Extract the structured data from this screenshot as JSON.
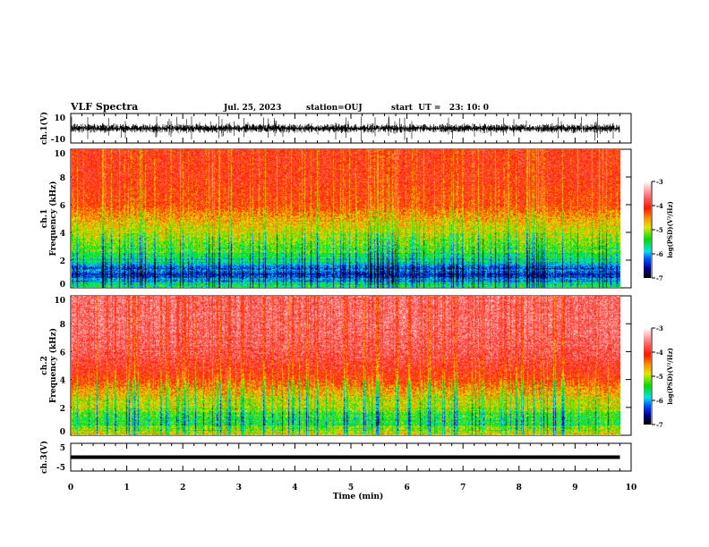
{
  "header": {
    "title": "VLF Spectra",
    "date": "Jul. 25, 2023",
    "station": "station=OUJ",
    "start": "start  UT =   23: 10: 0"
  },
  "chart_data": [
    {
      "type": "line",
      "name": "ch1 waveform",
      "ylabel": "ch.1(V)",
      "ylim": [
        -10,
        10
      ],
      "yticks": [
        "10",
        "-10"
      ],
      "xlim": [
        0,
        10
      ],
      "baseline_v": 0,
      "amplitude_v": 2,
      "spike_v": 5,
      "data_end_min": 9.8
    },
    {
      "type": "heatmap",
      "name": "ch1 spectrogram",
      "ylabel": "ch.1\nFrequency (kHz)",
      "ylabel_top": "ch.1",
      "ylabel_bottom": "Frequency (kHz)",
      "ylim": [
        0,
        10
      ],
      "yticks": [
        "0",
        "2",
        "4",
        "6",
        "8",
        "10"
      ],
      "profile_khz": [
        0,
        0.5,
        1,
        1.5,
        2,
        3,
        4,
        5,
        6,
        8,
        10
      ],
      "profile_log_psd": [
        -5.3,
        -6.0,
        -6.3,
        -6.1,
        -5.6,
        -5.2,
        -4.9,
        -4.6,
        -4.2,
        -4.0,
        -4.0
      ],
      "colorbar": {
        "label": "log(PSD)(V²/Hz)",
        "ticks": [
          "-3",
          "-4",
          "-5",
          "-6",
          "-7"
        ],
        "range": [
          -7,
          -3
        ]
      }
    },
    {
      "type": "heatmap",
      "name": "ch2 spectrogram",
      "ylabel": "ch.2\nFrequency (kHz)",
      "ylabel_top": "ch.2",
      "ylabel_bottom": "Frequency (kHz)",
      "ylim": [
        0,
        10
      ],
      "yticks": [
        "0",
        "2",
        "4",
        "6",
        "8",
        "10"
      ],
      "profile_khz": [
        0,
        0.5,
        1,
        1.5,
        2,
        3,
        4,
        5,
        6,
        8,
        10
      ],
      "profile_log_psd": [
        -4.7,
        -5.2,
        -5.5,
        -5.3,
        -5.0,
        -4.7,
        -4.2,
        -3.9,
        -3.7,
        -3.6,
        -3.6
      ],
      "colorbar": {
        "label": "log(PSD)(V²/Hz)",
        "ticks": [
          "-3",
          "-4",
          "-5",
          "-6",
          "-7"
        ],
        "range": [
          -7,
          -3
        ]
      }
    },
    {
      "type": "line",
      "name": "ch3 waveform",
      "ylabel": "ch.3(V)",
      "ylim": [
        -5,
        5
      ],
      "yticks": [
        "5",
        "-5"
      ],
      "xlim": [
        0,
        10
      ],
      "baseline_v": 0,
      "data_end_min": 9.8
    },
    {
      "xlabel": "Time (min)",
      "xticks": [
        "0",
        "1",
        "2",
        "3",
        "4",
        "5",
        "6",
        "7",
        "8",
        "9",
        "10"
      ],
      "xlim": [
        0,
        10
      ]
    }
  ]
}
